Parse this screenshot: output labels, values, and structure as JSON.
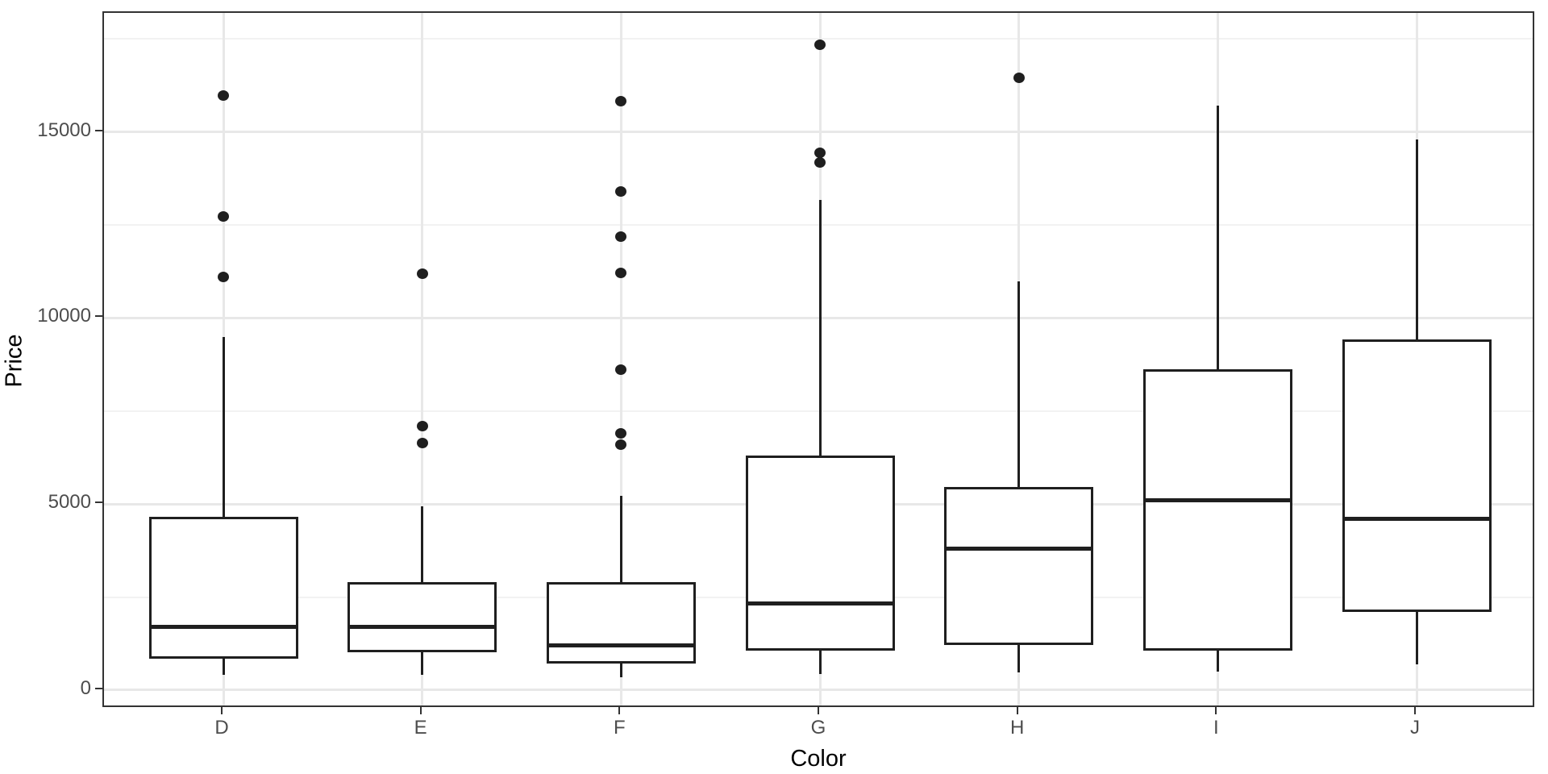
{
  "chart_data": {
    "type": "boxplot",
    "title": "",
    "xlabel": "Color",
    "ylabel": "Price",
    "categories": [
      "D",
      "E",
      "F",
      "G",
      "H",
      "I",
      "J"
    ],
    "y_ticks": [
      0,
      5000,
      10000,
      15000
    ],
    "y_tick_labels": [
      "0",
      "5000",
      "10000",
      "15000"
    ],
    "y_minor_ticks": [
      2500,
      7500,
      12500,
      17500
    ],
    "ylim": [
      -500,
      18200
    ],
    "grid": true,
    "legend": "none",
    "series": [
      {
        "category": "D",
        "whisker_low": 400,
        "q1": 870,
        "median": 1700,
        "q3": 4620,
        "whisker_high": 9480,
        "outliers": [
          11100,
          12720,
          15980
        ]
      },
      {
        "category": "E",
        "whisker_low": 400,
        "q1": 1050,
        "median": 1700,
        "q3": 2860,
        "whisker_high": 4930,
        "outliers": [
          6650,
          7100,
          11180
        ]
      },
      {
        "category": "F",
        "whisker_low": 350,
        "q1": 740,
        "median": 1200,
        "q3": 2860,
        "whisker_high": 5220,
        "outliers": [
          6600,
          6900,
          8620,
          11220,
          12180,
          13400,
          15830
        ]
      },
      {
        "category": "G",
        "whisker_low": 440,
        "q1": 1100,
        "median": 2320,
        "q3": 6280,
        "whisker_high": 13180,
        "outliers": [
          14180,
          14440,
          17340
        ]
      },
      {
        "category": "H",
        "whisker_low": 480,
        "q1": 1250,
        "median": 3800,
        "q3": 5420,
        "whisker_high": 10980,
        "outliers": [
          16450
        ]
      },
      {
        "category": "I",
        "whisker_low": 500,
        "q1": 1100,
        "median": 5100,
        "q3": 8580,
        "whisker_high": 15700,
        "outliers": []
      },
      {
        "category": "J",
        "whisker_low": 700,
        "q1": 2130,
        "median": 4600,
        "q3": 9400,
        "whisker_high": 14800,
        "outliers": []
      }
    ]
  },
  "colors": {
    "box_stroke": "#1f1f1f",
    "panel_border": "#333333",
    "grid_major": "#e8e8e8",
    "grid_minor": "#f2f2f2",
    "tick_label": "#4d4d4d",
    "axis_title": "#000000",
    "background": "#ffffff"
  }
}
